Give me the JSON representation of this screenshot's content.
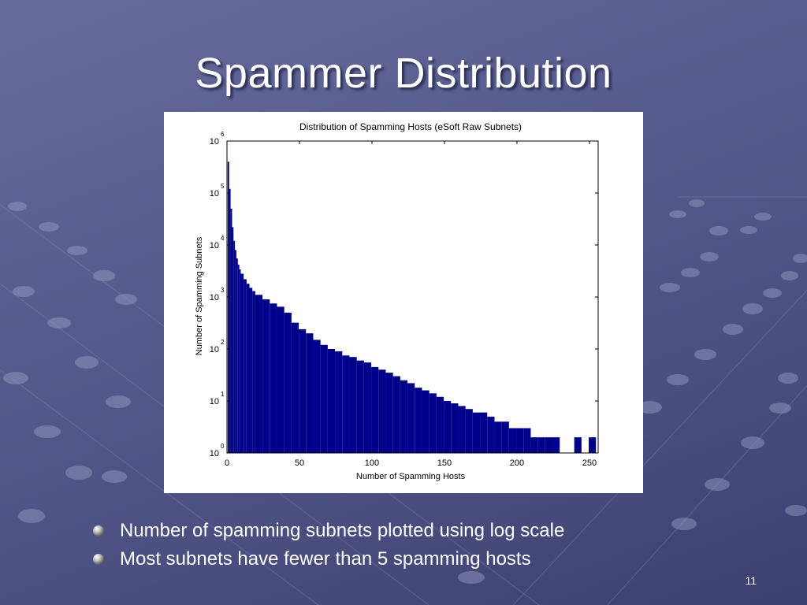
{
  "slide": {
    "title": "Spammer Distribution",
    "page_number": "11",
    "bullets": [
      "Number of spamming subnets plotted using log scale",
      "Most subnets have fewer than 5 spamming hosts"
    ],
    "colors": {
      "title_text": "#ffffff",
      "bar_fill": "#00008b"
    }
  },
  "chart_data": {
    "type": "bar",
    "title": "Distribution of Spamming Hosts (eSoft Raw Subnets)",
    "xlabel": "Number of Spamming Hosts",
    "ylabel": "Number of Spamming Subnets",
    "y_scale": "log",
    "xlim": [
      0,
      256
    ],
    "ylim": [
      1,
      1000000
    ],
    "x_ticks": [
      0,
      50,
      100,
      150,
      200,
      250
    ],
    "y_ticks": [
      {
        "value": 1,
        "base": "10",
        "exp": "0"
      },
      {
        "value": 10,
        "base": "10",
        "exp": "1"
      },
      {
        "value": 100,
        "base": "10",
        "exp": "2"
      },
      {
        "value": 1000,
        "base": "10",
        "exp": "3"
      },
      {
        "value": 10000,
        "base": "10",
        "exp": "4"
      },
      {
        "value": 100000,
        "base": "10",
        "exp": "5"
      },
      {
        "value": 1000000,
        "base": "10",
        "exp": "6"
      }
    ],
    "grid": false,
    "series": [
      {
        "x": [
          1,
          2,
          3,
          4,
          5,
          6,
          7,
          8,
          9,
          10,
          12,
          14,
          16,
          18,
          20,
          25,
          30,
          35,
          40,
          45,
          50,
          55,
          60,
          65,
          70,
          75,
          80,
          85,
          90,
          95,
          100,
          105,
          110,
          115,
          120,
          125,
          130,
          135,
          140,
          145,
          150,
          155,
          160,
          165,
          170,
          175,
          180,
          185,
          190,
          195,
          200,
          205,
          210,
          215,
          220,
          225,
          230,
          235,
          240,
          245,
          250,
          255
        ],
        "values": [
          400000,
          120000,
          50000,
          22000,
          12000,
          8000,
          5500,
          4200,
          3400,
          2800,
          2200,
          1800,
          1500,
          1300,
          1100,
          900,
          750,
          650,
          500,
          320,
          240,
          200,
          150,
          120,
          100,
          90,
          75,
          70,
          60,
          55,
          45,
          40,
          35,
          30,
          25,
          22,
          18,
          16,
          14,
          12,
          10,
          9,
          8,
          7,
          6,
          6,
          5,
          4,
          4,
          3,
          3,
          3,
          2,
          2,
          2,
          2,
          1,
          1,
          2,
          1,
          2,
          1
        ]
      }
    ]
  }
}
